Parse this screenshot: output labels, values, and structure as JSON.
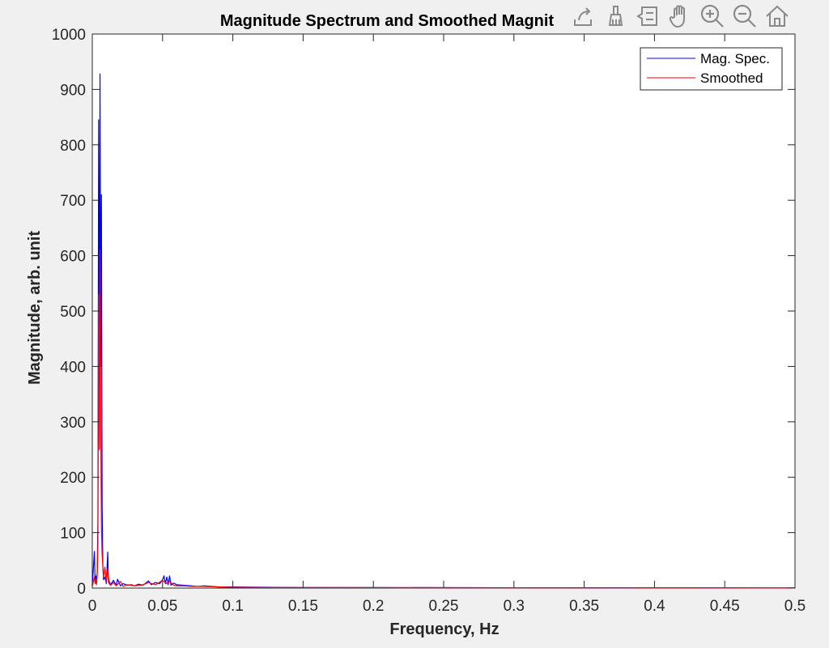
{
  "chart_data": {
    "type": "line",
    "title": "Magnitude Spectrum and Smoothed Magnit",
    "xlabel": "Frequency, Hz",
    "ylabel": "Magnitude, arb. unit",
    "xlim": [
      0,
      0.5
    ],
    "ylim": [
      0,
      1000
    ],
    "x_ticks": [
      "0",
      "0.05",
      "0.1",
      "0.15",
      "0.2",
      "0.25",
      "0.3",
      "0.35",
      "0.4",
      "0.45",
      "0.5"
    ],
    "y_ticks": [
      "0",
      "100",
      "200",
      "300",
      "400",
      "500",
      "600",
      "700",
      "800",
      "900",
      "1000"
    ],
    "grid": false,
    "legend_position": "top-right",
    "series": [
      {
        "name": "Mag. Spec.",
        "color": "#0000ff",
        "x": [
          0,
          0.0015,
          0.002,
          0.0025,
          0.003,
          0.0035,
          0.004,
          0.0045,
          0.005,
          0.0055,
          0.006,
          0.0065,
          0.007,
          0.0075,
          0.008,
          0.009,
          0.01,
          0.011,
          0.0115,
          0.012,
          0.013,
          0.015,
          0.017,
          0.018,
          0.02,
          0.022,
          0.025,
          0.028,
          0.03,
          0.033,
          0.036,
          0.038,
          0.04,
          0.042,
          0.045,
          0.048,
          0.05,
          0.051,
          0.052,
          0.053,
          0.054,
          0.055,
          0.056,
          0.058,
          0.06,
          0.065,
          0.07,
          0.075,
          0.08,
          0.09,
          0.1,
          0.12,
          0.15,
          0.2,
          0.3,
          0.4,
          0.5
        ],
        "y": [
          5,
          66,
          10,
          22,
          8,
          30,
          120,
          845,
          300,
          928,
          400,
          710,
          150,
          40,
          15,
          20,
          8,
          65,
          10,
          12,
          6,
          14,
          5,
          16,
          4,
          8,
          5,
          6,
          4,
          7,
          5,
          9,
          13,
          6,
          10,
          8,
          15,
          22,
          8,
          20,
          6,
          22,
          5,
          9,
          6,
          5,
          4,
          3,
          4,
          2,
          2,
          1.5,
          1,
          1,
          0.5,
          0.5,
          0.3
        ]
      },
      {
        "name": "Smoothed",
        "color": "#ff0000",
        "x": [
          0,
          0.0015,
          0.002,
          0.0025,
          0.003,
          0.0035,
          0.004,
          0.0045,
          0.005,
          0.0055,
          0.006,
          0.0065,
          0.007,
          0.0075,
          0.008,
          0.009,
          0.01,
          0.011,
          0.012,
          0.013,
          0.015,
          0.017,
          0.02,
          0.022,
          0.025,
          0.03,
          0.035,
          0.04,
          0.045,
          0.05,
          0.053,
          0.055,
          0.058,
          0.06,
          0.065,
          0.07,
          0.08,
          0.09,
          0.1,
          0.12,
          0.15,
          0.2,
          0.3,
          0.4,
          0.5
        ],
        "y": [
          3,
          20,
          8,
          15,
          6,
          25,
          80,
          530,
          250,
          610,
          300,
          110,
          60,
          40,
          20,
          38,
          10,
          35,
          8,
          5,
          10,
          4,
          12,
          3,
          6,
          4,
          5,
          10,
          6,
          14,
          8,
          12,
          5,
          4,
          4,
          3,
          3,
          2,
          1.5,
          1,
          1,
          0.8,
          0.5,
          0.4,
          0.3
        ]
      }
    ]
  },
  "toolbar": {
    "icons": [
      "export-icon",
      "brush-icon",
      "datatip-icon",
      "pan-icon",
      "zoom-in-icon",
      "zoom-out-icon",
      "home-icon"
    ]
  },
  "colors": {
    "figure_background": "#f0f0f0",
    "axes_background": "#ffffff",
    "axis_color": "#262626",
    "icon_color": "#8a8a8a"
  }
}
